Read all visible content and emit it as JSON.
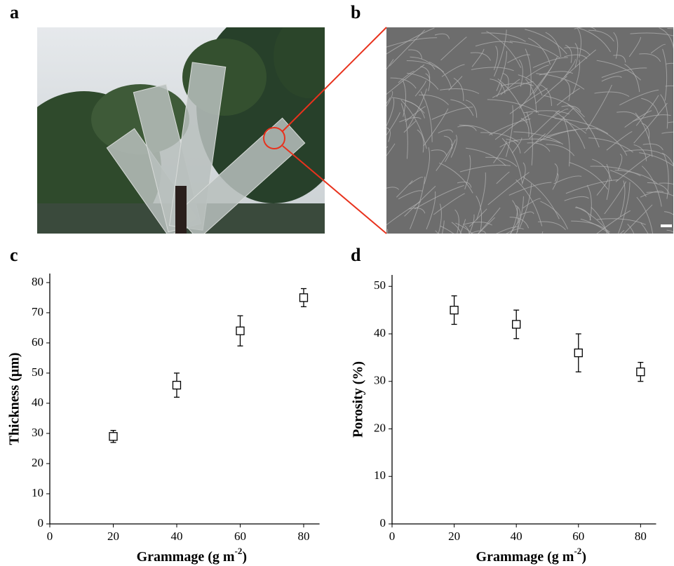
{
  "panels": {
    "a": "a",
    "b": "b"
  },
  "chart_data": [
    {
      "type": "scatter",
      "panel": "c",
      "x_label": {
        "text": "Grammage (g m",
        "superscript": "-2",
        "suffix": ")"
      },
      "y_label": "Thickness (μm)",
      "x": [
        20,
        40,
        60,
        80
      ],
      "values": [
        29,
        46,
        64,
        75
      ],
      "errors": [
        2,
        4,
        5,
        3
      ],
      "color": "#000000",
      "xlim": [
        0,
        85
      ],
      "xticks": [
        0,
        20,
        40,
        60,
        80
      ],
      "ylim": [
        0,
        83
      ],
      "yticks": [
        0,
        10,
        20,
        30,
        40,
        50,
        60,
        70,
        80
      ]
    },
    {
      "type": "scatter",
      "panel": "d",
      "x_label": {
        "text": "Grammage (g m",
        "superscript": "-2",
        "suffix": ")"
      },
      "y_label": "Porosity (%)",
      "x": [
        20,
        40,
        60,
        80
      ],
      "values": [
        45,
        42,
        36,
        32
      ],
      "errors": [
        3,
        3,
        4,
        2
      ],
      "color": "#000000",
      "xlim": [
        0,
        85
      ],
      "xticks": [
        0,
        20,
        40,
        60,
        80
      ],
      "ylim": [
        0,
        52.4
      ],
      "yticks": [
        0,
        10,
        20,
        30,
        40,
        50
      ]
    }
  ]
}
